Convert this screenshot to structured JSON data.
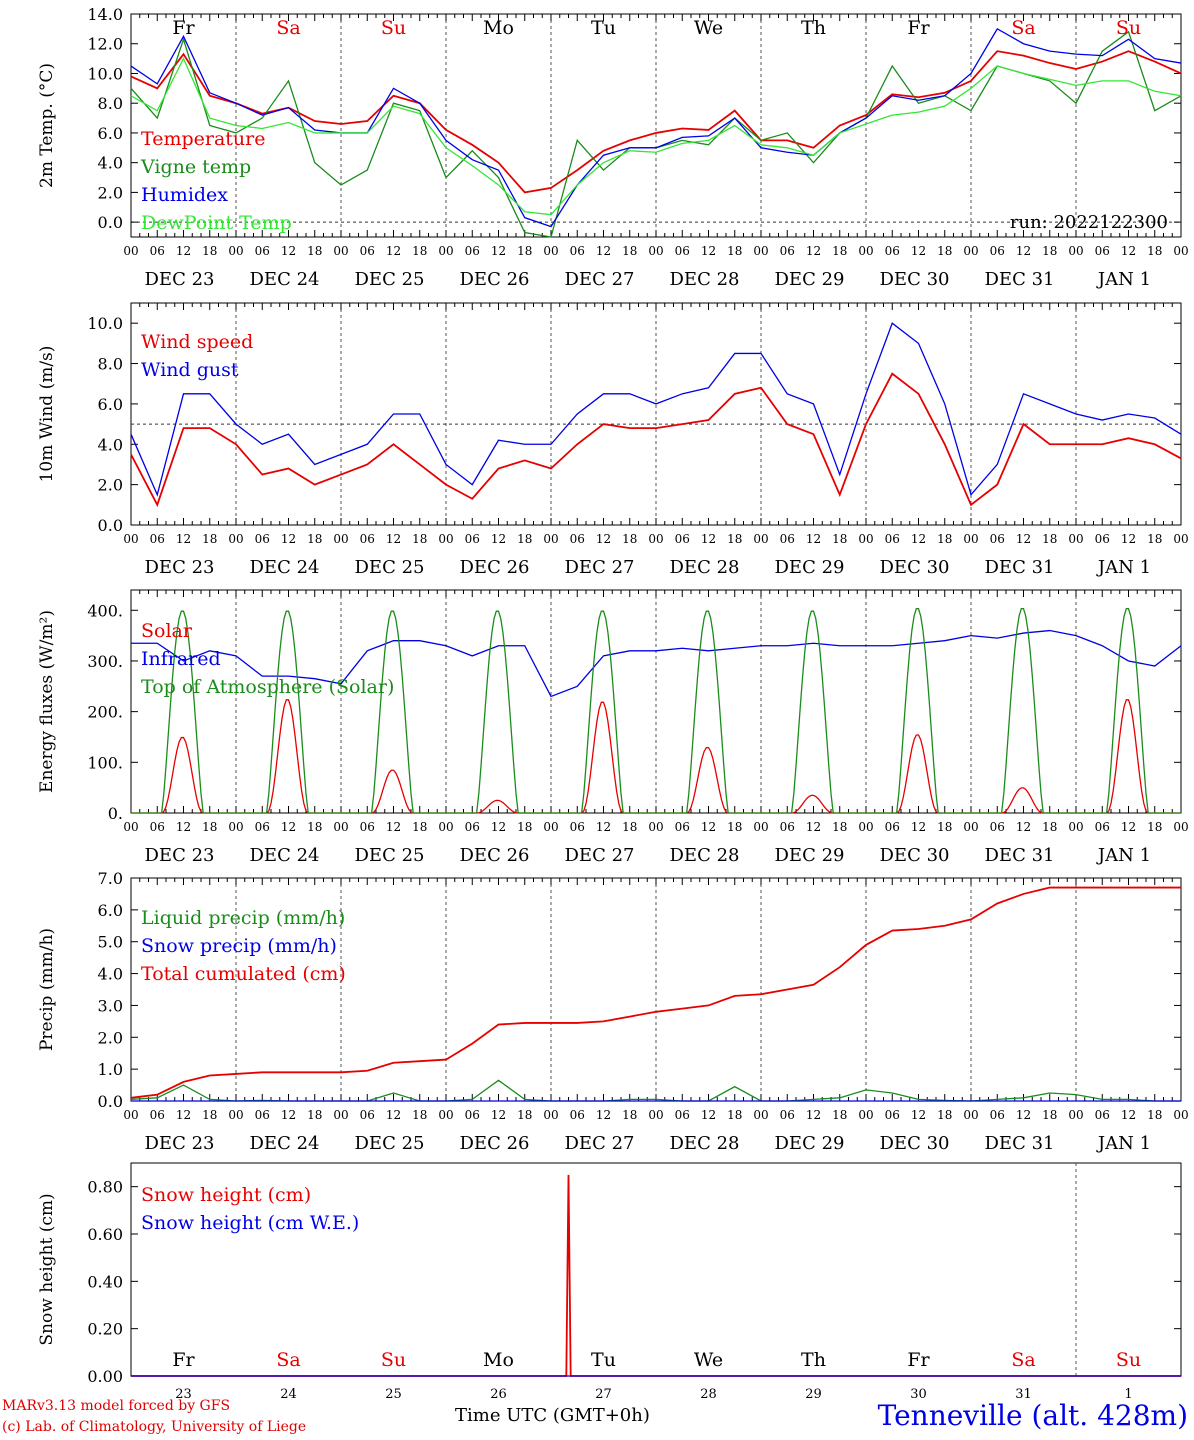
{
  "footer": {
    "credit_line1": "MARv3.13 model forced by GFS",
    "credit_line2": "(c) Lab. of Climatology, University of Liege",
    "time_axis_label": "Time UTC (GMT+0h)",
    "station": "Tenneville (alt. 428m)"
  },
  "colors": {
    "red": "#e60000",
    "green": "#1a8c1a",
    "blue": "#0000e6",
    "lightgreen": "#33e633",
    "black": "#000000"
  },
  "chart_data": [
    {
      "type": "line",
      "ylabel": "2m Temp. (°C)",
      "ylim": [
        -1,
        14
      ],
      "yticks": [
        "0.0",
        "2.0",
        "4.0",
        "6.0",
        "8.0",
        "10.0",
        "12.0",
        "14.0"
      ],
      "yticks_values": [
        0,
        2,
        4,
        6,
        8,
        10,
        12,
        14
      ],
      "hline": 0,
      "annotation": "run: 2022122300",
      "day_labels": [
        {
          "t": "Fr",
          "c": "black"
        },
        {
          "t": "Sa",
          "c": "red"
        },
        {
          "t": "Su",
          "c": "red"
        },
        {
          "t": "Mo",
          "c": "black"
        },
        {
          "t": "Tu",
          "c": "black"
        },
        {
          "t": "We",
          "c": "black"
        },
        {
          "t": "Th",
          "c": "black"
        },
        {
          "t": "Fr",
          "c": "black"
        },
        {
          "t": "Sa",
          "c": "red"
        },
        {
          "t": "Su",
          "c": "red"
        }
      ],
      "x_hours": [
        0,
        6,
        12,
        18,
        24,
        30,
        36,
        42,
        48,
        54,
        60,
        66,
        72,
        78,
        84,
        90,
        96,
        102,
        108,
        114,
        120,
        126,
        132,
        138,
        144,
        150,
        156,
        162,
        168,
        174,
        180,
        186,
        192,
        198,
        204,
        210,
        216,
        222,
        228,
        234,
        240
      ],
      "series": [
        {
          "name": "Temperature",
          "color": "red",
          "values": [
            9.8,
            9.0,
            11.3,
            8.5,
            8.0,
            7.3,
            7.7,
            6.8,
            6.6,
            6.8,
            8.5,
            8.0,
            6.2,
            5.2,
            4.0,
            2.0,
            2.3,
            3.5,
            4.8,
            5.5,
            6.0,
            6.3,
            6.2,
            7.5,
            5.5,
            5.5,
            5.0,
            6.5,
            7.2,
            8.6,
            8.4,
            8.7,
            9.5,
            11.5,
            11.2,
            10.7,
            10.3,
            10.8,
            11.5,
            10.8,
            10.0
          ]
        },
        {
          "name": "Vigne temp",
          "color": "green",
          "values": [
            9.0,
            7.0,
            12.3,
            6.5,
            6.0,
            7.0,
            9.5,
            4.0,
            2.5,
            3.5,
            8.0,
            7.5,
            3.0,
            4.8,
            3.0,
            -0.7,
            -1.0,
            5.5,
            3.5,
            5.0,
            5.0,
            5.5,
            5.2,
            7.0,
            5.5,
            6.0,
            4.0,
            6.0,
            7.0,
            10.5,
            8.0,
            8.5,
            7.5,
            10.5,
            10.0,
            9.5,
            8.0,
            11.5,
            12.8,
            7.5,
            8.5
          ]
        },
        {
          "name": "Humidex",
          "color": "blue",
          "values": [
            10.5,
            9.3,
            12.5,
            8.7,
            8.0,
            7.2,
            7.7,
            6.2,
            6.0,
            6.0,
            9.0,
            8.0,
            5.5,
            4.2,
            3.5,
            0.3,
            -0.3,
            2.5,
            4.5,
            5.0,
            5.0,
            5.7,
            5.8,
            7.0,
            5.0,
            4.7,
            4.5,
            6.0,
            7.0,
            8.5,
            8.2,
            8.5,
            10.0,
            13.0,
            12.0,
            11.5,
            11.3,
            11.2,
            12.3,
            11.0,
            10.7
          ]
        },
        {
          "name": "DewPoint Temp",
          "color": "lightgreen",
          "values": [
            8.5,
            7.5,
            11.0,
            7.0,
            6.5,
            6.3,
            6.7,
            6.0,
            6.0,
            6.0,
            7.8,
            7.3,
            5.0,
            3.8,
            2.5,
            0.7,
            0.5,
            2.5,
            4.0,
            4.8,
            4.7,
            5.3,
            5.5,
            6.5,
            5.2,
            5.0,
            4.5,
            6.0,
            6.6,
            7.2,
            7.4,
            7.8,
            9.0,
            10.5,
            10.0,
            9.6,
            9.2,
            9.5,
            9.5,
            8.8,
            8.5
          ]
        }
      ]
    },
    {
      "type": "line",
      "ylabel": "10m Wind (m/s)",
      "ylim": [
        0,
        11
      ],
      "yticks": [
        "0.0",
        "2.0",
        "4.0",
        "6.0",
        "8.0",
        "10.0"
      ],
      "yticks_values": [
        0,
        2,
        4,
        6,
        8,
        10
      ],
      "hline": 5,
      "x_hours": [
        0,
        6,
        12,
        18,
        24,
        30,
        36,
        42,
        48,
        54,
        60,
        66,
        72,
        78,
        84,
        90,
        96,
        102,
        108,
        114,
        120,
        126,
        132,
        138,
        144,
        150,
        156,
        162,
        168,
        174,
        180,
        186,
        192,
        198,
        204,
        210,
        216,
        222,
        228,
        234,
        240
      ],
      "series": [
        {
          "name": "Wind speed",
          "color": "red",
          "values": [
            3.5,
            1.0,
            4.8,
            4.8,
            4.0,
            2.5,
            2.8,
            2.0,
            2.5,
            3.0,
            4.0,
            3.0,
            2.0,
            1.3,
            2.8,
            3.2,
            2.8,
            4.0,
            5.0,
            4.8,
            4.8,
            5.0,
            5.2,
            6.5,
            6.8,
            5.0,
            4.5,
            1.5,
            5.0,
            7.5,
            6.5,
            4.0,
            1.0,
            2.0,
            5.0,
            4.0,
            4.0,
            4.0,
            4.3,
            4.0,
            3.3
          ]
        },
        {
          "name": "Wind gust",
          "color": "blue",
          "values": [
            4.5,
            1.5,
            6.5,
            6.5,
            5.0,
            4.0,
            4.5,
            3.0,
            3.5,
            4.0,
            5.5,
            5.5,
            3.0,
            2.0,
            4.2,
            4.0,
            4.0,
            5.5,
            6.5,
            6.5,
            6.0,
            6.5,
            6.8,
            8.5,
            8.5,
            6.5,
            6.0,
            2.5,
            6.5,
            10.0,
            9.0,
            6.0,
            1.5,
            3.0,
            6.5,
            6.0,
            5.5,
            5.2,
            5.5,
            5.3,
            4.5
          ]
        }
      ]
    },
    {
      "type": "line",
      "ylabel": "Energy fluxes (W/m²)",
      "ylim": [
        0,
        440
      ],
      "yticks": [
        "0.",
        "100.",
        "200.",
        "300.",
        "400."
      ],
      "yticks_values": [
        0,
        100,
        200,
        300,
        400
      ],
      "x_hours": [
        0,
        6,
        12,
        18,
        24,
        30,
        36,
        42,
        48,
        54,
        60,
        66,
        72,
        78,
        84,
        90,
        96,
        102,
        108,
        114,
        120,
        126,
        132,
        138,
        144,
        150,
        156,
        162,
        168,
        174,
        180,
        186,
        192,
        198,
        204,
        210,
        216,
        222,
        228,
        234,
        240
      ],
      "series": [
        {
          "name": "Solar",
          "color": "red",
          "peaks": [
            150,
            225,
            85,
            25,
            220,
            130,
            35,
            155,
            50,
            225
          ]
        },
        {
          "name": "Infrared",
          "color": "blue",
          "values": [
            335,
            335,
            300,
            320,
            310,
            270,
            270,
            265,
            255,
            320,
            340,
            340,
            330,
            310,
            330,
            330,
            230,
            250,
            310,
            320,
            320,
            325,
            320,
            325,
            330,
            330,
            335,
            330,
            330,
            330,
            335,
            340,
            350,
            345,
            355,
            360,
            350,
            330,
            300,
            290,
            330
          ]
        },
        {
          "name": "Top of Atmosphere (Solar)",
          "color": "green",
          "peaks": [
            400,
            400,
            400,
            400,
            400,
            400,
            400,
            405,
            405,
            405
          ]
        }
      ]
    },
    {
      "type": "line",
      "ylabel": "Precip (mm/h)",
      "ylim": [
        0,
        7
      ],
      "yticks": [
        "0.0",
        "1.0",
        "2.0",
        "3.0",
        "4.0",
        "5.0",
        "6.0",
        "7.0"
      ],
      "yticks_values": [
        0,
        1,
        2,
        3,
        4,
        5,
        6,
        7
      ],
      "x_hours": [
        0,
        6,
        12,
        18,
        24,
        30,
        36,
        42,
        48,
        54,
        60,
        66,
        72,
        78,
        84,
        90,
        96,
        102,
        108,
        114,
        120,
        126,
        132,
        138,
        144,
        150,
        156,
        162,
        168,
        174,
        180,
        186,
        192,
        198,
        204,
        210,
        216,
        222,
        228,
        234,
        240
      ],
      "series": [
        {
          "name": "Liquid precip (mm/h)",
          "color": "green",
          "values": [
            0.05,
            0.1,
            0.5,
            0.05,
            0.0,
            0.02,
            0.0,
            0.0,
            0.0,
            0.0,
            0.25,
            0.0,
            0.0,
            0.05,
            0.65,
            0.05,
            0.0,
            0.0,
            0.0,
            0.05,
            0.05,
            0.0,
            0.0,
            0.45,
            0.0,
            0.0,
            0.05,
            0.1,
            0.35,
            0.25,
            0.05,
            0.02,
            0.0,
            0.05,
            0.1,
            0.25,
            0.2,
            0.05,
            0.05,
            0.0,
            0.0
          ]
        },
        {
          "name": "Snow precip (mm/h)",
          "color": "blue",
          "values": [
            0,
            0,
            0,
            0,
            0,
            0,
            0,
            0,
            0,
            0,
            0,
            0,
            0,
            0,
            0,
            0,
            0,
            0,
            0,
            0,
            0,
            0,
            0,
            0,
            0,
            0,
            0,
            0,
            0,
            0,
            0,
            0,
            0,
            0,
            0,
            0,
            0,
            0,
            0,
            0,
            0
          ]
        },
        {
          "name": "Total cumulated (cm)",
          "color": "red",
          "values": [
            0.1,
            0.2,
            0.6,
            0.8,
            0.85,
            0.9,
            0.9,
            0.9,
            0.9,
            0.95,
            1.2,
            1.25,
            1.3,
            1.8,
            2.4,
            2.45,
            2.45,
            2.45,
            2.5,
            2.65,
            2.8,
            2.9,
            3.0,
            3.3,
            3.35,
            3.5,
            3.65,
            4.2,
            4.9,
            5.35,
            5.4,
            5.5,
            5.7,
            6.2,
            6.5,
            6.7,
            6.7,
            6.7,
            6.7,
            6.7,
            6.7
          ]
        }
      ]
    },
    {
      "type": "line",
      "ylabel": "Snow height (cm)",
      "ylim": [
        0,
        0.9
      ],
      "yticks": [
        "0.00",
        "0.20",
        "0.40",
        "0.60",
        "0.80"
      ],
      "yticks_values": [
        0,
        0.2,
        0.4,
        0.6,
        0.8
      ],
      "bottom_day_labels": [
        {
          "t": "Fr",
          "c": "black"
        },
        {
          "t": "Sa",
          "c": "red"
        },
        {
          "t": "Su",
          "c": "red"
        },
        {
          "t": "Mo",
          "c": "black"
        },
        {
          "t": "Tu",
          "c": "black"
        },
        {
          "t": "We",
          "c": "black"
        },
        {
          "t": "Th",
          "c": "black"
        },
        {
          "t": "Fr",
          "c": "black"
        },
        {
          "t": "Sa",
          "c": "red"
        },
        {
          "t": "Su",
          "c": "red"
        }
      ],
      "date_numbers": [
        "23",
        "24",
        "25",
        "26",
        "27",
        "28",
        "29",
        "30",
        "31",
        "1"
      ],
      "x_hours": [
        0,
        99.5,
        100,
        100.5,
        240
      ],
      "series": [
        {
          "name": "Snow height (cm)",
          "color": "red",
          "values": [
            0,
            0,
            0.85,
            0,
            0
          ]
        },
        {
          "name": "Snow height (cm W.E.)",
          "color": "blue",
          "values": [
            0,
            0,
            0,
            0,
            0
          ]
        }
      ]
    }
  ],
  "date_labels": [
    "DEC 23",
    "DEC 24",
    "DEC 25",
    "DEC 26",
    "DEC 27",
    "DEC 28",
    "DEC 29",
    "DEC 30",
    "DEC 31",
    "JAN  1"
  ],
  "hour_labels": [
    "00",
    "06",
    "12",
    "18"
  ]
}
